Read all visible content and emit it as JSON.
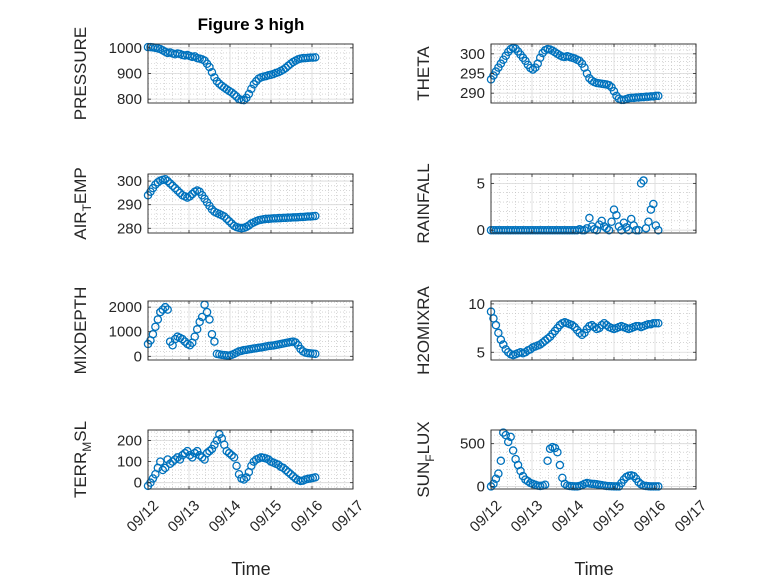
{
  "figure": {
    "title": "Figure 3 high",
    "xlabel": "Time",
    "xticks": [
      "09/12",
      "09/13",
      "09/14",
      "09/15",
      "09/16",
      "09/17"
    ],
    "marker_color": "#0072BD",
    "grid_color": "#bdbdbd"
  },
  "chart_data": [
    {
      "type": "scatter",
      "ylabel": "PRESSURE",
      "ylabel_sub": "",
      "ylabel_tail": "",
      "yticks": [
        800,
        900,
        1000
      ],
      "ylim": [
        785,
        1015
      ],
      "xlim": [
        0,
        5
      ],
      "x": [
        0.0,
        0.06,
        0.12,
        0.18,
        0.24,
        0.3,
        0.36,
        0.42,
        0.48,
        0.54,
        0.6,
        0.66,
        0.72,
        0.78,
        0.84,
        0.9,
        0.96,
        1.02,
        1.08,
        1.14,
        1.2,
        1.26,
        1.32,
        1.38,
        1.44,
        1.5,
        1.56,
        1.62,
        1.68,
        1.74,
        1.8,
        1.86,
        1.92,
        1.98,
        2.04,
        2.1,
        2.16,
        2.22,
        2.28,
        2.34,
        2.4,
        2.46,
        2.52,
        2.58,
        2.64,
        2.7,
        2.76,
        2.82,
        2.88,
        2.94,
        3.0,
        3.06,
        3.12,
        3.18,
        3.24,
        3.3,
        3.36,
        3.42,
        3.48,
        3.54,
        3.6,
        3.66,
        3.72,
        3.78,
        3.84,
        3.9,
        3.96,
        4.02,
        4.08
      ],
      "y": [
        1003,
        1003,
        1002,
        1000,
        998,
        995,
        990,
        985,
        980,
        982,
        978,
        975,
        978,
        976,
        972,
        970,
        972,
        968,
        965,
        967,
        960,
        958,
        955,
        950,
        938,
        925,
        905,
        885,
        870,
        860,
        852,
        845,
        838,
        832,
        826,
        818,
        810,
        800,
        797,
        796,
        805,
        820,
        840,
        858,
        870,
        880,
        885,
        888,
        890,
        893,
        895,
        898,
        902,
        905,
        910,
        915,
        922,
        930,
        938,
        945,
        950,
        955,
        958,
        960,
        960,
        961,
        962,
        962,
        963
      ]
    },
    {
      "type": "scatter",
      "ylabel": "THETA",
      "ylabel_sub": "",
      "ylabel_tail": "",
      "yticks": [
        290,
        295,
        300
      ],
      "ylim": [
        287.5,
        302.5
      ],
      "xlim": [
        0,
        5
      ],
      "x": [
        0.0,
        0.06,
        0.12,
        0.18,
        0.24,
        0.3,
        0.36,
        0.42,
        0.48,
        0.54,
        0.6,
        0.66,
        0.72,
        0.78,
        0.84,
        0.9,
        0.96,
        1.02,
        1.08,
        1.14,
        1.2,
        1.26,
        1.32,
        1.38,
        1.44,
        1.5,
        1.56,
        1.62,
        1.68,
        1.74,
        1.8,
        1.86,
        1.92,
        1.98,
        2.04,
        2.1,
        2.16,
        2.22,
        2.28,
        2.34,
        2.4,
        2.46,
        2.52,
        2.58,
        2.64,
        2.7,
        2.76,
        2.82,
        2.88,
        2.94,
        3.0,
        3.06,
        3.12,
        3.18,
        3.24,
        3.3,
        3.36,
        3.42,
        3.48,
        3.54,
        3.6,
        3.66,
        3.72,
        3.78,
        3.84,
        3.9,
        3.96,
        4.02,
        4.08
      ],
      "y": [
        293.5,
        294.5,
        295.5,
        296.5,
        297.5,
        298.5,
        299.5,
        300.5,
        301.2,
        301.5,
        301.3,
        300.6,
        299.8,
        299,
        298.2,
        297.2,
        296.4,
        296,
        296.5,
        297.5,
        299,
        300.2,
        300.9,
        301.2,
        301.1,
        300.8,
        300.4,
        300,
        299.6,
        299.3,
        299.2,
        299.4,
        299.2,
        299,
        298.8,
        298.5,
        298.2,
        297.5,
        296.5,
        295,
        293.8,
        293.2,
        292.8,
        292.6,
        292.5,
        292.4,
        292.3,
        292.2,
        292,
        291.5,
        290.5,
        289.3,
        288.6,
        288.3,
        288.3,
        288.5,
        288.7,
        288.8,
        288.8,
        288.9,
        288.9,
        289,
        289,
        289.1,
        289.1,
        289.2,
        289.2,
        289.3,
        289.3
      ]
    },
    {
      "type": "scatter",
      "ylabel": "AIR",
      "ylabel_sub": "T",
      "ylabel_tail": "EMP",
      "yticks": [
        280,
        290,
        300
      ],
      "ylim": [
        278,
        303
      ],
      "xlim": [
        0,
        5
      ],
      "x": [
        0.0,
        0.06,
        0.12,
        0.18,
        0.24,
        0.3,
        0.36,
        0.42,
        0.48,
        0.54,
        0.6,
        0.66,
        0.72,
        0.78,
        0.84,
        0.9,
        0.96,
        1.02,
        1.08,
        1.14,
        1.2,
        1.26,
        1.32,
        1.38,
        1.44,
        1.5,
        1.56,
        1.62,
        1.68,
        1.74,
        1.8,
        1.86,
        1.92,
        1.98,
        2.04,
        2.1,
        2.16,
        2.22,
        2.28,
        2.34,
        2.4,
        2.46,
        2.52,
        2.58,
        2.64,
        2.7,
        2.76,
        2.82,
        2.88,
        2.94,
        3.0,
        3.06,
        3.12,
        3.18,
        3.24,
        3.3,
        3.36,
        3.42,
        3.48,
        3.54,
        3.6,
        3.66,
        3.72,
        3.78,
        3.84,
        3.9,
        3.96,
        4.02,
        4.08
      ],
      "y": [
        294,
        295.5,
        297,
        298.5,
        299.5,
        300.2,
        300.5,
        300.8,
        300,
        299,
        298,
        297,
        296,
        295,
        294,
        293.5,
        293,
        293.5,
        294.5,
        295.5,
        296,
        295.5,
        294,
        292.5,
        291,
        289.5,
        288,
        287,
        286.5,
        286,
        285.5,
        285,
        284,
        283,
        282,
        281,
        280.5,
        280.2,
        280,
        280.2,
        280.6,
        281.2,
        282,
        282.5,
        283,
        283.4,
        283.6,
        283.8,
        284,
        284,
        284.1,
        284.2,
        284.2,
        284.3,
        284.3,
        284.4,
        284.4,
        284.5,
        284.5,
        284.6,
        284.6,
        284.7,
        284.8,
        284.8,
        284.9,
        285,
        285,
        285.1,
        285.2
      ]
    },
    {
      "type": "scatter",
      "ylabel": "RAINFALL",
      "ylabel_sub": "",
      "ylabel_tail": "",
      "yticks": [
        0,
        5
      ],
      "ylim": [
        -0.3,
        6
      ],
      "xlim": [
        0,
        5
      ],
      "x": [
        0.0,
        0.06,
        0.12,
        0.18,
        0.24,
        0.3,
        0.36,
        0.42,
        0.48,
        0.54,
        0.6,
        0.66,
        0.72,
        0.78,
        0.84,
        0.9,
        0.96,
        1.02,
        1.08,
        1.14,
        1.2,
        1.26,
        1.32,
        1.38,
        1.44,
        1.5,
        1.56,
        1.62,
        1.68,
        1.74,
        1.8,
        1.86,
        1.92,
        1.98,
        2.04,
        2.1,
        2.16,
        2.22,
        2.28,
        2.34,
        2.4,
        2.46,
        2.52,
        2.58,
        2.64,
        2.7,
        2.76,
        2.82,
        2.88,
        2.94,
        3.0,
        3.06,
        3.12,
        3.18,
        3.24,
        3.3,
        3.36,
        3.42,
        3.48,
        3.54,
        3.6,
        3.66,
        3.72,
        3.78,
        3.84,
        3.9,
        3.96,
        4.02,
        4.08
      ],
      "y": [
        0,
        0,
        0,
        0,
        0,
        0,
        0,
        0,
        0,
        0,
        0,
        0,
        0,
        0,
        0,
        0,
        0,
        0,
        0,
        0,
        0,
        0,
        0,
        0,
        0,
        0,
        0,
        0,
        0,
        0,
        0,
        0,
        0,
        0,
        0,
        0,
        0.1,
        0,
        0,
        0.2,
        1.3,
        0.4,
        0.1,
        0,
        0.6,
        1.0,
        0.4,
        0.2,
        0,
        0.9,
        2.2,
        1.6,
        0.4,
        0,
        0.8,
        0.3,
        0,
        1.2,
        0.5,
        0,
        0,
        5.0,
        5.3,
        0.2,
        0.9,
        2.2,
        2.8,
        0.5,
        0
      ]
    },
    {
      "type": "scatter",
      "ylabel": "MIXDEPTH",
      "ylabel_sub": "",
      "ylabel_tail": "",
      "yticks": [
        0,
        1000,
        2000
      ],
      "ylim": [
        -150,
        2250
      ],
      "xlim": [
        0,
        5
      ],
      "x": [
        0.0,
        0.06,
        0.12,
        0.18,
        0.24,
        0.3,
        0.36,
        0.42,
        0.48,
        0.54,
        0.6,
        0.66,
        0.72,
        0.78,
        0.84,
        0.9,
        0.96,
        1.02,
        1.08,
        1.14,
        1.2,
        1.26,
        1.32,
        1.38,
        1.44,
        1.5,
        1.56,
        1.62,
        1.68,
        1.74,
        1.8,
        1.86,
        1.92,
        1.98,
        2.04,
        2.1,
        2.16,
        2.22,
        2.28,
        2.34,
        2.4,
        2.46,
        2.52,
        2.58,
        2.64,
        2.7,
        2.76,
        2.82,
        2.88,
        2.94,
        3.0,
        3.06,
        3.12,
        3.18,
        3.24,
        3.3,
        3.36,
        3.42,
        3.48,
        3.54,
        3.6,
        3.66,
        3.72,
        3.78,
        3.84,
        3.9,
        3.96,
        4.02,
        4.08
      ],
      "y": [
        500,
        650,
        900,
        1200,
        1500,
        1800,
        1900,
        2000,
        1900,
        600,
        450,
        700,
        800,
        750,
        700,
        600,
        500,
        450,
        550,
        800,
        1100,
        1400,
        1600,
        2100,
        1800,
        1500,
        900,
        600,
        100,
        80,
        60,
        50,
        40,
        30,
        60,
        100,
        150,
        200,
        220,
        250,
        260,
        280,
        300,
        320,
        330,
        350,
        360,
        380,
        400,
        420,
        430,
        440,
        460,
        480,
        500,
        520,
        540,
        560,
        580,
        600,
        560,
        450,
        300,
        200,
        150,
        130,
        120,
        110,
        100
      ]
    },
    {
      "type": "scatter",
      "ylabel": "H2OMIXRA",
      "ylabel_sub": "",
      "ylabel_tail": "",
      "yticks": [
        5,
        10
      ],
      "ylim": [
        4.2,
        10.3
      ],
      "xlim": [
        0,
        5
      ],
      "x": [
        0.0,
        0.06,
        0.12,
        0.18,
        0.24,
        0.3,
        0.36,
        0.42,
        0.48,
        0.54,
        0.6,
        0.66,
        0.72,
        0.78,
        0.84,
        0.9,
        0.96,
        1.02,
        1.08,
        1.14,
        1.2,
        1.26,
        1.32,
        1.38,
        1.44,
        1.5,
        1.56,
        1.62,
        1.68,
        1.74,
        1.8,
        1.86,
        1.92,
        1.98,
        2.04,
        2.1,
        2.16,
        2.22,
        2.28,
        2.34,
        2.4,
        2.46,
        2.52,
        2.58,
        2.64,
        2.7,
        2.76,
        2.82,
        2.88,
        2.94,
        3.0,
        3.06,
        3.12,
        3.18,
        3.24,
        3.3,
        3.36,
        3.42,
        3.48,
        3.54,
        3.6,
        3.66,
        3.72,
        3.78,
        3.84,
        3.9,
        3.96,
        4.02,
        4.08
      ],
      "y": [
        9.2,
        8.5,
        7.8,
        7.0,
        6.3,
        5.8,
        5.3,
        5.0,
        4.8,
        4.7,
        4.8,
        4.9,
        5.0,
        4.9,
        5.0,
        5.2,
        5.3,
        5.5,
        5.6,
        5.7,
        5.8,
        6.0,
        6.2,
        6.4,
        6.6,
        6.9,
        7.2,
        7.5,
        7.8,
        8.0,
        8.1,
        8.0,
        7.9,
        7.8,
        7.6,
        7.3,
        7.0,
        6.8,
        7.0,
        7.4,
        7.7,
        7.8,
        7.6,
        7.4,
        7.5,
        7.8,
        8.0,
        7.8,
        7.6,
        7.5,
        7.4,
        7.5,
        7.6,
        7.7,
        7.6,
        7.5,
        7.4,
        7.5,
        7.6,
        7.7,
        7.7,
        7.6,
        7.7,
        7.8,
        7.9,
        7.9,
        8.0,
        8.0,
        8.0
      ]
    },
    {
      "type": "scatter",
      "ylabel": "TERR",
      "ylabel_sub": "M",
      "ylabel_tail": "SL",
      "yticks": [
        0,
        100,
        200
      ],
      "ylim": [
        -30,
        250
      ],
      "xlim": [
        0,
        5
      ],
      "x": [
        0.0,
        0.06,
        0.12,
        0.18,
        0.24,
        0.3,
        0.36,
        0.42,
        0.48,
        0.54,
        0.6,
        0.66,
        0.72,
        0.78,
        0.84,
        0.9,
        0.96,
        1.02,
        1.08,
        1.14,
        1.2,
        1.26,
        1.32,
        1.38,
        1.44,
        1.5,
        1.56,
        1.62,
        1.68,
        1.74,
        1.8,
        1.86,
        1.92,
        1.98,
        2.04,
        2.1,
        2.16,
        2.22,
        2.28,
        2.34,
        2.4,
        2.46,
        2.52,
        2.58,
        2.64,
        2.7,
        2.76,
        2.82,
        2.88,
        2.94,
        3.0,
        3.06,
        3.12,
        3.18,
        3.24,
        3.3,
        3.36,
        3.42,
        3.48,
        3.54,
        3.6,
        3.66,
        3.72,
        3.78,
        3.84,
        3.9,
        3.96,
        4.02,
        4.08
      ],
      "y": [
        -15,
        0,
        20,
        40,
        70,
        100,
        60,
        70,
        110,
        90,
        100,
        110,
        120,
        110,
        130,
        140,
        150,
        130,
        120,
        140,
        150,
        130,
        120,
        110,
        140,
        150,
        160,
        180,
        200,
        230,
        210,
        180,
        150,
        140,
        130,
        120,
        80,
        40,
        20,
        15,
        25,
        50,
        80,
        100,
        110,
        115,
        120,
        118,
        115,
        110,
        100,
        95,
        90,
        85,
        75,
        70,
        60,
        50,
        40,
        30,
        20,
        12,
        8,
        10,
        15,
        18,
        20,
        22,
        25
      ]
    },
    {
      "type": "scatter",
      "ylabel": "SUN",
      "ylabel_sub": "F",
      "ylabel_tail": "LUX",
      "yticks": [
        0,
        500
      ],
      "ylim": [
        -30,
        660
      ],
      "xlim": [
        0,
        5
      ],
      "x": [
        0.0,
        0.06,
        0.12,
        0.18,
        0.24,
        0.3,
        0.36,
        0.42,
        0.48,
        0.54,
        0.6,
        0.66,
        0.72,
        0.78,
        0.84,
        0.9,
        0.96,
        1.02,
        1.08,
        1.14,
        1.2,
        1.26,
        1.32,
        1.38,
        1.44,
        1.5,
        1.56,
        1.62,
        1.68,
        1.74,
        1.8,
        1.86,
        1.92,
        1.98,
        2.04,
        2.1,
        2.16,
        2.22,
        2.28,
        2.34,
        2.4,
        2.46,
        2.52,
        2.58,
        2.64,
        2.7,
        2.76,
        2.82,
        2.88,
        2.94,
        3.0,
        3.06,
        3.12,
        3.18,
        3.24,
        3.3,
        3.36,
        3.42,
        3.48,
        3.54,
        3.6,
        3.66,
        3.72,
        3.78,
        3.84,
        3.9,
        3.96,
        4.02,
        4.08
      ],
      "y": [
        0,
        30,
        90,
        150,
        300,
        630,
        600,
        520,
        580,
        420,
        320,
        250,
        180,
        120,
        80,
        60,
        40,
        30,
        20,
        10,
        5,
        10,
        20,
        300,
        440,
        460,
        450,
        400,
        250,
        100,
        30,
        10,
        5,
        2,
        0,
        0,
        5,
        15,
        30,
        40,
        35,
        30,
        28,
        25,
        20,
        15,
        10,
        5,
        3,
        2,
        1,
        0,
        0,
        40,
        80,
        110,
        125,
        130,
        120,
        90,
        50,
        25,
        10,
        5,
        2,
        0,
        0,
        0,
        0
      ]
    }
  ]
}
